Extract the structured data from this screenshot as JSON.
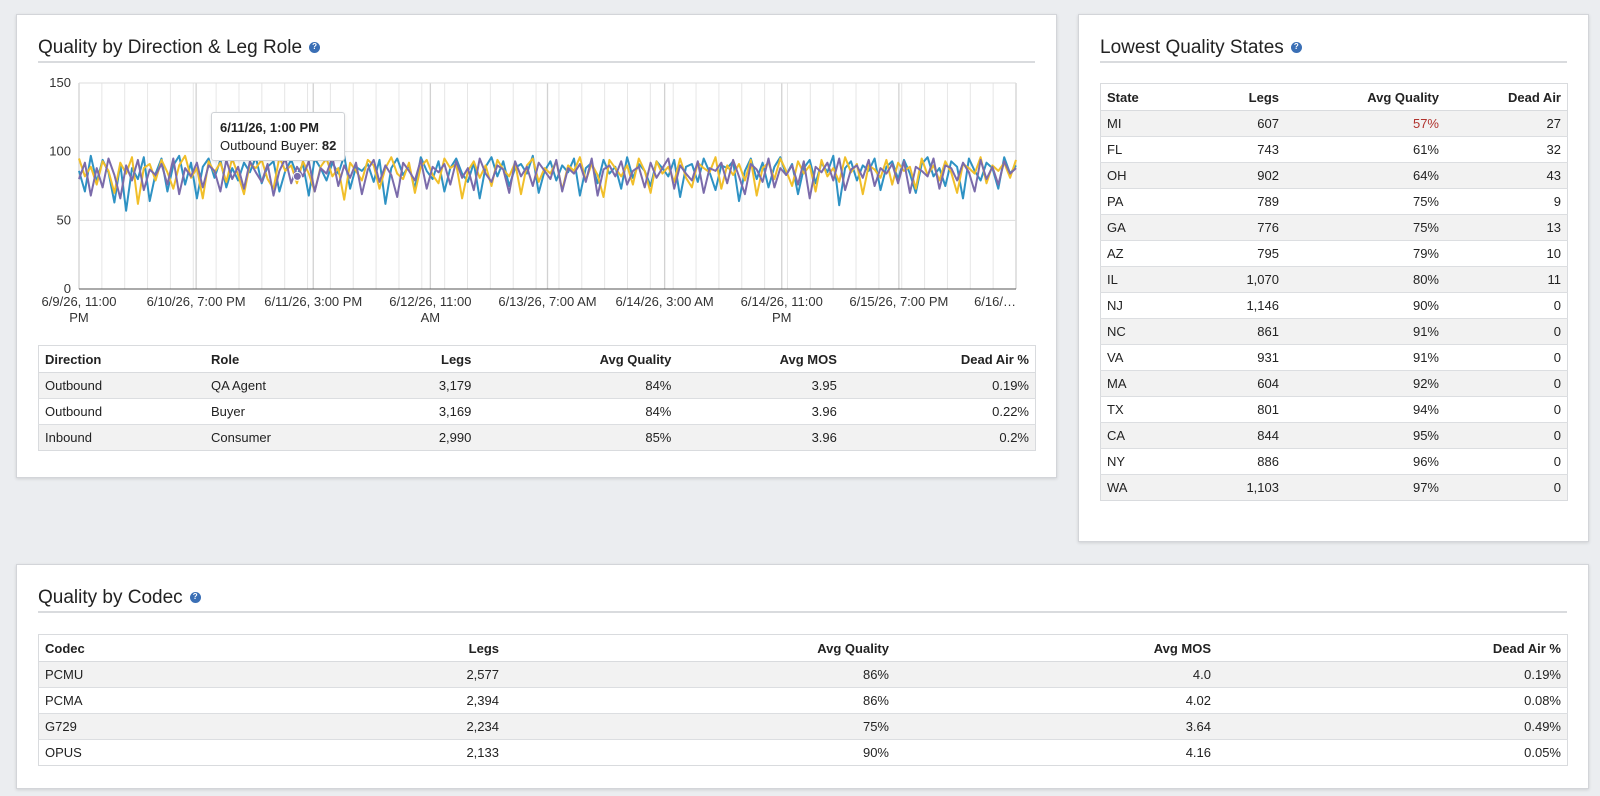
{
  "direction_panel": {
    "title": "Quality by Direction & Leg Role",
    "help_icon": "question-circle-icon",
    "tooltip": {
      "title": "6/11/26, 1:00 PM",
      "label": "Outbound Buyer:",
      "value": "82"
    },
    "table": {
      "headers": [
        "Direction",
        "Role",
        "Legs",
        "Avg Quality",
        "Avg MOS",
        "Dead Air %"
      ],
      "rows": [
        [
          "Outbound",
          "QA Agent",
          "3,179",
          "84%",
          "3.95",
          "0.19%"
        ],
        [
          "Outbound",
          "Buyer",
          "3,169",
          "84%",
          "3.96",
          "0.22%"
        ],
        [
          "Inbound",
          "Consumer",
          "2,990",
          "85%",
          "3.96",
          "0.2%"
        ]
      ]
    }
  },
  "chart_data": {
    "type": "line",
    "ylim": [
      0,
      150
    ],
    "y_ticks": [
      "0",
      "50",
      "100",
      "150"
    ],
    "x_ticks": [
      [
        "6/9/26, 11:00",
        "PM"
      ],
      [
        "6/10/26, 7:00 PM"
      ],
      [
        "6/11/26, 3:00 PM"
      ],
      [
        "6/12/26, 11:00",
        "AM"
      ],
      [
        "6/13/26, 7:00 AM"
      ],
      [
        "6/14/26, 3:00 AM"
      ],
      [
        "6/14/26, 11:00",
        "PM"
      ],
      [
        "6/15/26, 7:00 PM"
      ],
      [
        "6/16/…"
      ]
    ],
    "grid": true,
    "colors": {
      "series1": "#2e92c4",
      "series2": "#7b6bab",
      "series3": "#f1bf2a"
    },
    "series": [
      {
        "values": [
          86,
          71,
          97,
          78,
          94,
          85,
          63,
          91,
          57,
          88,
          80,
          96,
          64,
          84,
          95,
          71,
          90,
          97,
          76,
          92,
          66,
          89,
          95,
          81,
          94,
          74,
          88,
          79,
          92,
          85,
          96,
          77,
          89,
          93,
          71,
          86,
          94,
          83,
          91,
          68,
          95,
          88,
          79,
          92,
          84,
          97,
          73,
          89,
          86,
          91,
          78,
          94,
          62,
          88,
          95,
          83,
          90,
          73,
          96,
          86,
          80,
          93,
          71,
          88,
          95,
          84,
          78,
          92,
          66,
          89,
          96,
          82,
          93,
          75,
          88,
          91,
          84,
          97,
          70,
          86,
          93,
          79,
          90,
          85,
          95,
          68,
          88,
          92,
          77,
          94,
          84,
          89,
          73,
          96,
          81,
          91,
          86,
          75,
          93,
          88,
          82,
          94,
          67,
          89,
          91,
          78,
          95,
          85,
          72,
          90,
          88,
          93,
          64,
          86,
          95,
          80,
          92,
          74,
          89,
          96,
          83,
          91,
          69,
          88,
          94,
          77,
          92,
          85,
          97,
          61,
          88,
          93,
          79,
          90,
          86,
          95,
          72,
          89,
          93,
          80,
          94,
          84,
          70,
          91,
          96,
          82,
          88,
          75,
          93,
          89,
          66,
          95,
          86,
          79,
          92,
          88,
          73,
          96,
          84,
          90
        ]
      },
      {
        "values": [
          80,
          92,
          68,
          88,
          74,
          95,
          83,
          66,
          90,
          79,
          94,
          72,
          87,
          83,
          91,
          76,
          95,
          69,
          88,
          82,
          92,
          74,
          90,
          86,
          71,
          94,
          80,
          89,
          73,
          93,
          85,
          78,
          91,
          68,
          86,
          95,
          77,
          89,
          82,
          93,
          71,
          88,
          84,
          96,
          75,
          90,
          81,
          92,
          69,
          87,
          94,
          78,
          90,
          83,
          67,
          92,
          86,
          79,
          94,
          73,
          89,
          85,
          91,
          76,
          93,
          81,
          88,
          72,
          95,
          84,
          78,
          90,
          87,
          70,
          93,
          82,
          89,
          75,
          92,
          86,
          80,
          94,
          71,
          88,
          84,
          91,
          78,
          95,
          68,
          87,
          90,
          82,
          93,
          76,
          86,
          89,
          74,
          92,
          81,
          88,
          95,
          73,
          90,
          84,
          79,
          93,
          70,
          88,
          86,
          92,
          77,
          94,
          82,
          69,
          91,
          87,
          78,
          95,
          74,
          88,
          83,
          90,
          76,
          93,
          66,
          89,
          85,
          92,
          79,
          95,
          72,
          87,
          90,
          81,
          94,
          75,
          88,
          84,
          91,
          77,
          93,
          70,
          89,
          86,
          82,
          95,
          73,
          90,
          88,
          79,
          92,
          85,
          71,
          94,
          80,
          89,
          76,
          93,
          84,
          88
        ]
      },
      {
        "values": [
          95,
          82,
          89,
          76,
          93,
          86,
          70,
          92,
          84,
          96,
          62,
          88,
          91,
          79,
          94,
          85,
          73,
          90,
          97,
          81,
          88,
          66,
          93,
          85,
          92,
          78,
          95,
          83,
          69,
          91,
          88,
          94,
          80,
          73,
          96,
          86,
          90,
          77,
          93,
          84,
          71,
          89,
          95,
          82,
          88,
          65,
          92,
          86,
          79,
          94,
          90,
          73,
          88,
          96,
          84,
          80,
          92,
          70,
          89,
          94,
          83,
          77,
          95,
          88,
          91,
          66,
          86,
          93,
          81,
          90,
          75,
          94,
          87,
          82,
          92,
          69,
          90,
          95,
          78,
          88,
          84,
          93,
          72,
          90,
          86,
          96,
          79,
          91,
          83,
          67,
          94,
          88,
          82,
          90,
          76,
          95,
          86,
          70,
          93,
          84,
          89,
          78,
          95,
          81,
          74,
          92,
          88,
          85,
          96,
          73,
          90,
          83,
          91,
          79,
          94,
          68,
          88,
          92,
          80,
          95,
          86,
          75,
          93,
          84,
          90,
          71,
          94,
          82,
          88,
          78,
          96,
          85,
          91,
          69,
          90,
          87,
          81,
          94,
          76,
          92,
          86,
          89,
          73,
          95,
          83,
          90,
          79,
          93,
          85,
          70,
          91,
          88,
          84,
          96,
          77,
          90,
          86,
          92,
          81,
          94
        ]
      }
    ]
  },
  "states_panel": {
    "title": "Lowest Quality States",
    "help_icon": "question-circle-icon",
    "table": {
      "headers": [
        "State",
        "Legs",
        "Avg Quality",
        "Dead Air"
      ],
      "rows": [
        [
          "MI",
          "607",
          "57%",
          "27"
        ],
        [
          "FL",
          "743",
          "61%",
          "32"
        ],
        [
          "OH",
          "902",
          "64%",
          "43"
        ],
        [
          "PA",
          "789",
          "75%",
          "9"
        ],
        [
          "GA",
          "776",
          "75%",
          "13"
        ],
        [
          "AZ",
          "795",
          "79%",
          "10"
        ],
        [
          "IL",
          "1,070",
          "80%",
          "11"
        ],
        [
          "NJ",
          "1,146",
          "90%",
          "0"
        ],
        [
          "NC",
          "861",
          "91%",
          "0"
        ],
        [
          "VA",
          "931",
          "91%",
          "0"
        ],
        [
          "MA",
          "604",
          "92%",
          "0"
        ],
        [
          "TX",
          "801",
          "94%",
          "0"
        ],
        [
          "CA",
          "844",
          "95%",
          "0"
        ],
        [
          "NY",
          "886",
          "96%",
          "0"
        ],
        [
          "WA",
          "1,103",
          "97%",
          "0"
        ]
      ],
      "bad_color": "#b0322d"
    }
  },
  "codec_panel": {
    "title": "Quality by Codec",
    "help_icon": "question-circle-icon",
    "table": {
      "headers": [
        "Codec",
        "Legs",
        "Avg Quality",
        "Avg MOS",
        "Dead Air %"
      ],
      "rows": [
        [
          "PCMU",
          "2,577",
          "86%",
          "4.0",
          "0.19%"
        ],
        [
          "PCMA",
          "2,394",
          "86%",
          "4.02",
          "0.08%"
        ],
        [
          "G729",
          "2,234",
          "75%",
          "3.64",
          "0.49%"
        ],
        [
          "OPUS",
          "2,133",
          "90%",
          "4.16",
          "0.05%"
        ]
      ]
    }
  }
}
